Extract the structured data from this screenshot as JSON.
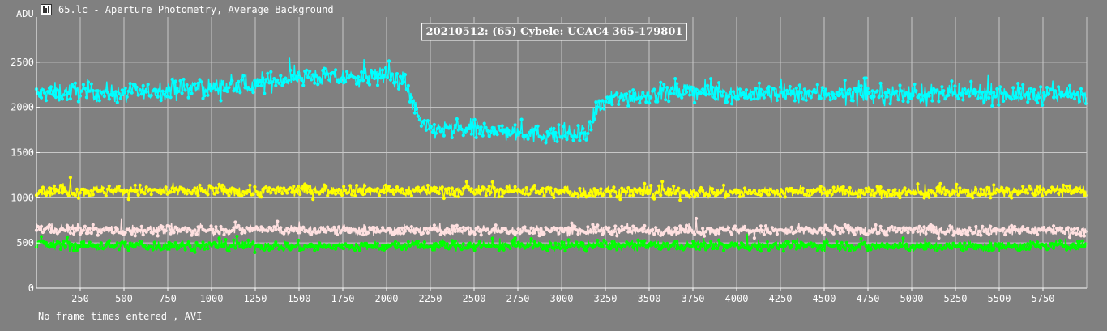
{
  "window": {
    "icon": "lightcurve-app-icon",
    "title": "65.lc - Aperture Photometry, Average Background"
  },
  "footer": {
    "status": "No frame times entered , AVI"
  },
  "colors": {
    "background": "#808080",
    "grid": "#c8c8c8",
    "text": "#ffffff",
    "target": "#00ffff",
    "comp1": "#ffff00",
    "comp2": "#ffe0e0",
    "comp3": "#00ff00"
  },
  "chart_data": {
    "type": "line",
    "title": "20210512: (65) Cybele: UCAC4 365-179801",
    "ylabel": "ADU",
    "xlabel": "",
    "xlim": [
      0,
      6000
    ],
    "ylim": [
      0,
      3000
    ],
    "grid": true,
    "xticks": [
      250,
      500,
      750,
      1000,
      1250,
      1500,
      1750,
      2000,
      2250,
      2500,
      2750,
      3000,
      3250,
      3500,
      3750,
      4000,
      4250,
      4500,
      4750,
      5000,
      5250,
      5500,
      5750
    ],
    "yticks": [
      0,
      500,
      1000,
      1500,
      2000,
      2500
    ],
    "x": [
      0,
      250,
      500,
      750,
      1000,
      1250,
      1500,
      1750,
      2000,
      2100,
      2200,
      2250,
      2500,
      2750,
      3000,
      3150,
      3200,
      3300,
      3500,
      3750,
      4000,
      4250,
      4500,
      4750,
      5000,
      5250,
      5500,
      5750,
      6000
    ],
    "series": [
      {
        "color": "#00ffff",
        "noise": 180,
        "values": [
          2150,
          2180,
          2150,
          2200,
          2220,
          2250,
          2350,
          2320,
          2350,
          2300,
          1800,
          1760,
          1750,
          1720,
          1690,
          1700,
          2000,
          2100,
          2150,
          2180,
          2150,
          2150,
          2150,
          2140,
          2150,
          2150,
          2150,
          2140,
          2150
        ]
      },
      {
        "color": "#ffff00",
        "noise": 110,
        "values": [
          1080,
          1070,
          1080,
          1070,
          1080,
          1070,
          1080,
          1090,
          1080,
          1070,
          1080,
          1080,
          1070,
          1080,
          1060,
          1060,
          1060,
          1070,
          1060,
          1060,
          1060,
          1060,
          1070,
          1060,
          1060,
          1060,
          1070,
          1070,
          1070
        ]
      },
      {
        "color": "#ffe0e0",
        "noise": 95,
        "values": [
          660,
          640,
          640,
          640,
          640,
          650,
          640,
          640,
          640,
          640,
          640,
          640,
          640,
          640,
          640,
          640,
          640,
          640,
          640,
          640,
          640,
          630,
          640,
          640,
          640,
          640,
          640,
          640,
          630
        ]
      },
      {
        "color": "#00ff00",
        "noise": 95,
        "values": [
          480,
          470,
          470,
          470,
          470,
          470,
          460,
          460,
          460,
          470,
          470,
          470,
          470,
          470,
          470,
          470,
          480,
          470,
          470,
          470,
          470,
          470,
          470,
          460,
          460,
          460,
          460,
          470,
          470
        ]
      }
    ]
  }
}
